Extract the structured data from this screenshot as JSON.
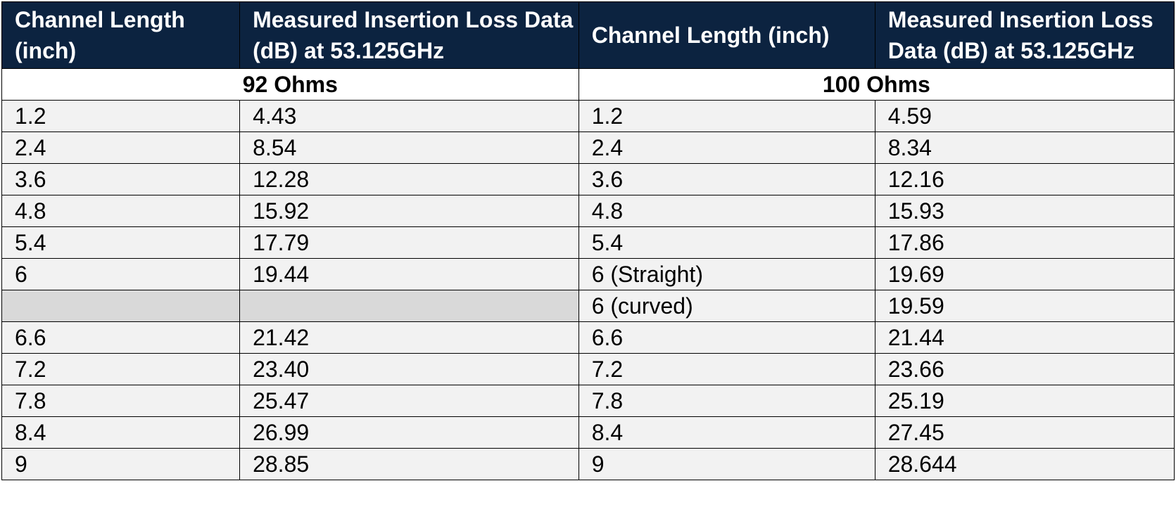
{
  "table": {
    "headers": [
      "Channel Length (inch)",
      "Measured Insertion Loss Data (dB) at 53.125GHz",
      "Channel Length (inch)",
      "Measured Insertion Loss Data (dB) at 53.125GHz"
    ],
    "group_left": "92 Ohms",
    "group_right": "100 Ohms",
    "rows": [
      {
        "l_len": "1.2",
        "l_loss": "4.43",
        "r_len": "1.2",
        "r_loss": "4.59"
      },
      {
        "l_len": "2.4",
        "l_loss": "8.54",
        "r_len": "2.4",
        "r_loss": "8.34"
      },
      {
        "l_len": "3.6",
        "l_loss": "12.28",
        "r_len": "3.6",
        "r_loss": "12.16"
      },
      {
        "l_len": "4.8",
        "l_loss": "15.92",
        "r_len": "4.8",
        "r_loss": "15.93"
      },
      {
        "l_len": "5.4",
        "l_loss": "17.79",
        "r_len": "5.4",
        "r_loss": "17.86"
      },
      {
        "l_len": "6",
        "l_loss": "19.44",
        "r_len": "6 (Straight)",
        "r_loss": "19.69"
      },
      {
        "l_len": "",
        "l_loss": "",
        "r_len": "6 (curved)",
        "r_loss": "19.59"
      },
      {
        "l_len": "6.6",
        "l_loss": "21.42",
        "r_len": "6.6",
        "r_loss": "21.44"
      },
      {
        "l_len": "7.2",
        "l_loss": "23.40",
        "r_len": "7.2",
        "r_loss": "23.66"
      },
      {
        "l_len": "7.8",
        "l_loss": "25.47",
        "r_len": "7.8",
        "r_loss": "25.19"
      },
      {
        "l_len": "8.4",
        "l_loss": "26.99",
        "r_len": "8.4",
        "r_loss": "27.45"
      },
      {
        "l_len": "9",
        "l_loss": "28.85",
        "r_len": "9",
        "r_loss": "28.644"
      }
    ]
  },
  "colors": {
    "header_bg": "#0c2340",
    "header_text": "#ffffff",
    "row_bg": "#f2f2f2",
    "blank_cell_bg": "#d9d9d9"
  }
}
